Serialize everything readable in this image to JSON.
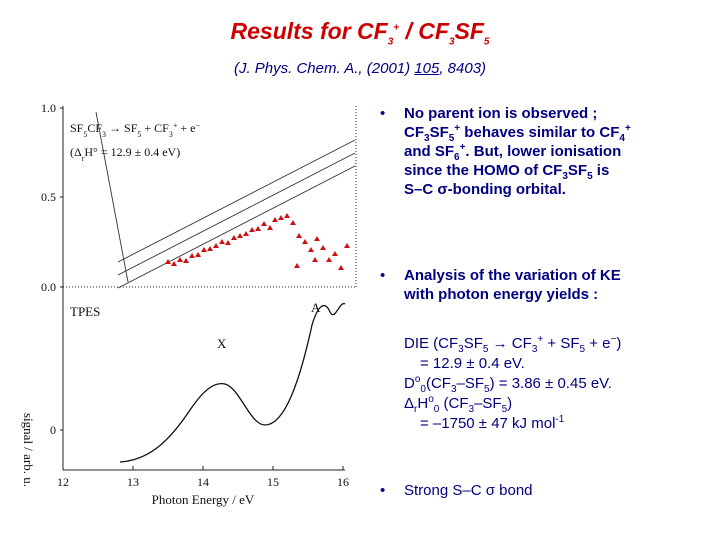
{
  "title": [
    "Results for CF",
    "3",
    "+",
    " / CF",
    "3",
    "SF",
    "5"
  ],
  "citation": [
    "(J. Phys. Chem. A., (2001) ",
    "105",
    ", 8403)"
  ],
  "figure": {
    "reaction": [
      "SF",
      "5",
      "CF",
      "3",
      " → SF",
      "5",
      " + CF",
      "3",
      "+",
      " + e",
      "−"
    ],
    "enthalpy": [
      "(Δ",
      "r",
      "H° = 12.9 ± 0.4 eV)"
    ],
    "upper_yticks": [
      "1.0",
      "0.5",
      "0.0"
    ],
    "lower_ytick": "0",
    "xticks": [
      "12",
      "13",
      "14",
      "15",
      "16"
    ],
    "xlabel": "Photon Energy / eV",
    "ylabel": "signal / arb. u.",
    "spectrum_label": "TPES",
    "peak_x": "X",
    "peak_a": "A"
  },
  "bullets": [
    {
      "lines": [
        [
          "No parent ion is observed ;"
        ],
        [
          "CF",
          "3",
          "SF",
          "5",
          "+",
          " behaves similar to CF",
          "4",
          "+"
        ],
        [
          "and SF",
          "6",
          "+",
          ".  But, lower ionisation"
        ],
        [
          "since the HOMO of CF",
          "3",
          "SF",
          "5",
          " is"
        ],
        [
          "S–C ",
          "σ",
          "-bonding orbital."
        ]
      ]
    },
    {
      "lines": [
        [
          "Analysis of the variation of KE"
        ],
        [
          "with photon energy yields :"
        ]
      ]
    },
    {
      "lines": [
        [
          "Strong S–C ",
          "σ",
          " bond"
        ]
      ]
    }
  ],
  "results": {
    "lines": [
      [
        "DIE (CF",
        "3",
        "SF",
        "5",
        " → CF",
        "3",
        "+",
        " + SF",
        "5",
        " + e",
        "−",
        ")"
      ],
      [
        "= 12.9 ± 0.4 eV."
      ],
      [
        "D",
        "o",
        "0",
        "(CF",
        "3",
        "–SF",
        "5",
        ")  =  3.86 ± 0.45 eV."
      ],
      [
        "Δ",
        "r",
        "H",
        "o",
        "0",
        " (CF",
        "3",
        "–SF",
        "5",
        ")"
      ],
      [
        "= –1750 ± 47 kJ mol",
        "-1"
      ]
    ]
  }
}
